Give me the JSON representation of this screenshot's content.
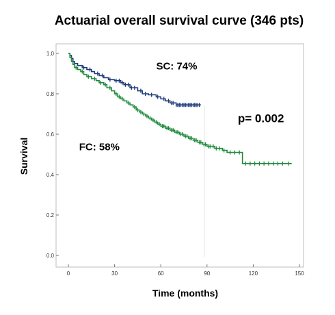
{
  "chart_data": {
    "type": "line",
    "title": "Actuarial overall survival curve (346 pts)",
    "xlabel": "Time (months)",
    "ylabel": "Survival",
    "xlim": [
      0,
      150
    ],
    "ylim": [
      0,
      1.0
    ],
    "xticks": [
      0,
      30,
      60,
      90,
      120,
      150
    ],
    "yticks": [
      0.0,
      0.2,
      0.4,
      0.6,
      0.8,
      1.0
    ],
    "xtick_labels": [
      "0",
      "30",
      "60",
      "90",
      "120",
      "150"
    ],
    "ytick_labels": [
      "0.0",
      "0.2",
      "0.4",
      "0.6",
      "0.8",
      "1.0"
    ],
    "grid": false,
    "step": true,
    "series": [
      {
        "name": "SC: 74%",
        "color": "#1f3a7a",
        "points": [
          [
            0,
            1.0
          ],
          [
            1,
            0.99
          ],
          [
            2,
            0.975
          ],
          [
            3,
            0.96
          ],
          [
            4,
            0.95
          ],
          [
            6,
            0.94
          ],
          [
            9,
            0.93
          ],
          [
            12,
            0.92
          ],
          [
            15,
            0.91
          ],
          [
            17,
            0.9
          ],
          [
            20,
            0.89
          ],
          [
            23,
            0.88
          ],
          [
            26,
            0.87
          ],
          [
            30,
            0.865
          ],
          [
            34,
            0.855
          ],
          [
            36,
            0.845
          ],
          [
            40,
            0.83
          ],
          [
            45,
            0.815
          ],
          [
            48,
            0.8
          ],
          [
            52,
            0.795
          ],
          [
            57,
            0.785
          ],
          [
            60,
            0.775
          ],
          [
            63,
            0.765
          ],
          [
            66,
            0.755
          ],
          [
            70,
            0.745
          ],
          [
            86,
            0.745
          ]
        ],
        "censored_x": [
          10,
          14,
          19,
          22,
          27,
          31,
          33,
          35,
          37,
          39,
          41,
          43,
          47,
          50,
          54,
          58,
          62,
          65,
          67,
          68,
          70,
          71,
          72,
          73,
          74,
          75,
          76,
          77,
          78,
          79,
          80,
          81,
          82,
          83,
          84,
          85
        ]
      },
      {
        "name": "FC: 58%",
        "color": "#1e8a3c",
        "points": [
          [
            0,
            1.0
          ],
          [
            1,
            0.98
          ],
          [
            2,
            0.96
          ],
          [
            3,
            0.945
          ],
          [
            4,
            0.93
          ],
          [
            6,
            0.92
          ],
          [
            8,
            0.91
          ],
          [
            10,
            0.895
          ],
          [
            12,
            0.885
          ],
          [
            15,
            0.875
          ],
          [
            18,
            0.865
          ],
          [
            20,
            0.855
          ],
          [
            23,
            0.845
          ],
          [
            25,
            0.83
          ],
          [
            28,
            0.815
          ],
          [
            30,
            0.8
          ],
          [
            32,
            0.785
          ],
          [
            34,
            0.775
          ],
          [
            36,
            0.765
          ],
          [
            38,
            0.755
          ],
          [
            40,
            0.745
          ],
          [
            42,
            0.735
          ],
          [
            44,
            0.72
          ],
          [
            46,
            0.71
          ],
          [
            48,
            0.7
          ],
          [
            50,
            0.69
          ],
          [
            52,
            0.68
          ],
          [
            54,
            0.67
          ],
          [
            56,
            0.66
          ],
          [
            58,
            0.65
          ],
          [
            60,
            0.64
          ],
          [
            63,
            0.63
          ],
          [
            66,
            0.62
          ],
          [
            69,
            0.61
          ],
          [
            72,
            0.6
          ],
          [
            75,
            0.59
          ],
          [
            78,
            0.58
          ],
          [
            81,
            0.57
          ],
          [
            84,
            0.56
          ],
          [
            87,
            0.55
          ],
          [
            90,
            0.54
          ],
          [
            95,
            0.53
          ],
          [
            100,
            0.52
          ],
          [
            103,
            0.51
          ],
          [
            113,
            0.51
          ],
          [
            113,
            0.455
          ],
          [
            145,
            0.455
          ]
        ],
        "censored_x": [
          5,
          9,
          13,
          17,
          21,
          24,
          27,
          31,
          33,
          35,
          39,
          43,
          45,
          47,
          49,
          51,
          53,
          55,
          57,
          59,
          61,
          62,
          64,
          65,
          67,
          68,
          70,
          71,
          73,
          74,
          76,
          77,
          79,
          80,
          82,
          83,
          85,
          86,
          88,
          89,
          91,
          92,
          94,
          96,
          98,
          101,
          105,
          108,
          111,
          115,
          118,
          121,
          124,
          127,
          130,
          133,
          136,
          139,
          143
        ]
      }
    ],
    "annotations": [
      {
        "text": "SC: 74%",
        "x": 57,
        "y": 0.92,
        "size": 15
      },
      {
        "text": "FC: 58%",
        "x": 7,
        "y": 0.52,
        "size": 15
      },
      {
        "text": "p= 0.002",
        "x": 110,
        "y": 0.66,
        "size": 17
      }
    ]
  }
}
